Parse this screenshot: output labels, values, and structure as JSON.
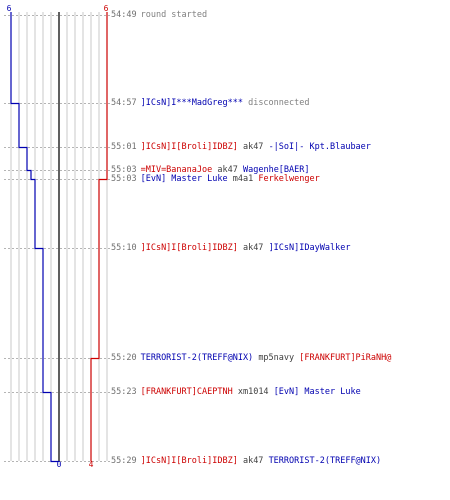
{
  "colors": {
    "team_red": "#cc0000",
    "team_blue": "#0000b0",
    "grid": "#c8c8c8",
    "center_line": "#606060",
    "dash": "#b4b4b4",
    "time": "#707070",
    "note": "#808080",
    "weapon": "#404040"
  },
  "scale": {
    "blue_start": "6",
    "red_start": "6",
    "blue_end": "0",
    "red_end": "4",
    "max_players": 6
  },
  "events": [
    {
      "time": "54:49",
      "note": "round started",
      "blue": 6,
      "red": 6
    },
    {
      "time": "54:57",
      "actor": "]ICsN]I***MadGreg***",
      "actor_team": "blue",
      "note": "disconnected",
      "blue": 5,
      "red": 6
    },
    {
      "time": "55:01",
      "actor": "]ICsN]I[Broli]IDBZ]",
      "actor_team": "red",
      "weapon": "ak47",
      "victim": "-|SoI|- Kpt.Blaubaer",
      "victim_team": "blue",
      "blue": 4,
      "red": 6
    },
    {
      "time": "55:03",
      "actor": "=MIV=BananaJoe",
      "actor_team": "red",
      "weapon": "ak47",
      "victim": "Wagenhe[BAER]",
      "victim_team": "blue",
      "blue": 3.5,
      "red": 6
    },
    {
      "time": "55:03",
      "actor": "[EvN] Master Luke",
      "actor_team": "blue",
      "weapon": "m4a1",
      "victim": "Ferkelwenger",
      "victim_team": "red",
      "blue": 3,
      "red": 5
    },
    {
      "time": "55:10",
      "actor": "]ICsN]I[Broli]IDBZ]",
      "actor_team": "red",
      "weapon": "ak47",
      "victim": "]ICsN]IDayWalker",
      "victim_team": "blue",
      "blue": 2,
      "red": 5
    },
    {
      "time": "55:20",
      "actor": "TERRORIST-2(TREFF@NIX)",
      "actor_team": "blue",
      "weapon": "mp5navy",
      "victim": "[FRANKFURT]PiRaNH@",
      "victim_team": "red",
      "blue": 2,
      "red": 4
    },
    {
      "time": "55:23",
      "actor": "[FRANKFURT]CAEPTNH",
      "actor_team": "red",
      "weapon": "xm1014",
      "victim": "[EvN] Master Luke",
      "victim_team": "blue",
      "blue": 1,
      "red": 4
    },
    {
      "time": "55:29",
      "actor": "]ICsN]I[Broli]IDBZ]",
      "actor_team": "red",
      "weapon": "ak47",
      "victim": "TERRORIST-2(TREFF@NIX)",
      "victim_team": "blue",
      "blue": 0,
      "red": 4
    }
  ]
}
